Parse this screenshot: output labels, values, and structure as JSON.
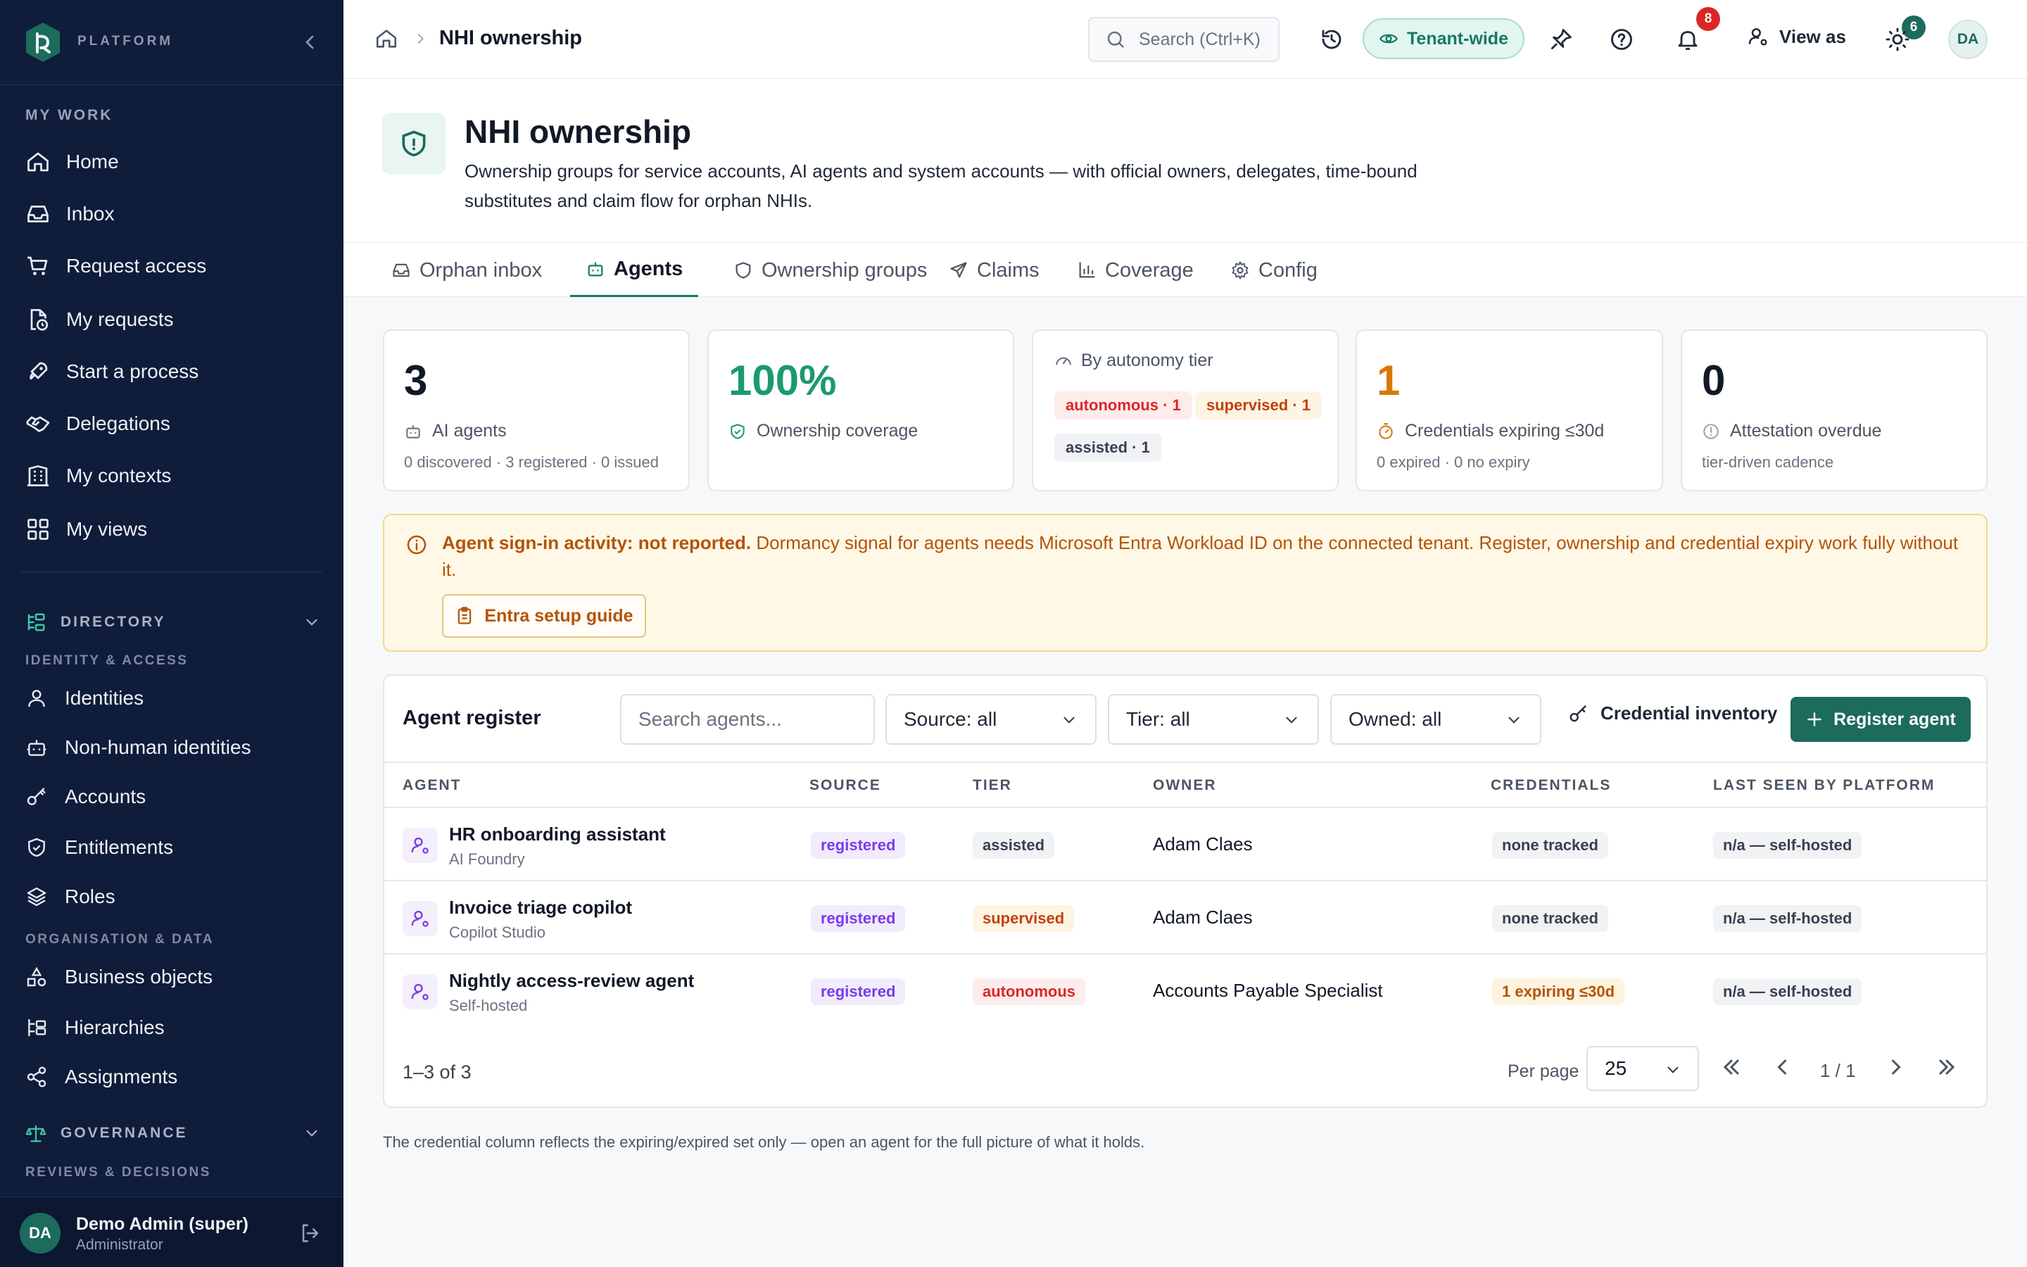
{
  "sidebar": {
    "brand": "PLATFORM",
    "my_work_title": "MY WORK",
    "my_work": [
      {
        "label": "Home"
      },
      {
        "label": "Inbox"
      },
      {
        "label": "Request access"
      },
      {
        "label": "My requests"
      },
      {
        "label": "Start a process"
      },
      {
        "label": "Delegations"
      },
      {
        "label": "My contexts"
      },
      {
        "label": "My views"
      }
    ],
    "directory_title": "DIRECTORY",
    "identity_access_title": "IDENTITY & ACCESS",
    "identity_items": [
      {
        "label": "Identities"
      },
      {
        "label": "Non-human identities"
      },
      {
        "label": "Accounts"
      },
      {
        "label": "Entitlements"
      },
      {
        "label": "Roles"
      }
    ],
    "org_data_title": "ORGANISATION & DATA",
    "org_items": [
      {
        "label": "Business objects"
      },
      {
        "label": "Hierarchies"
      },
      {
        "label": "Assignments"
      }
    ],
    "governance_title": "GOVERNANCE",
    "reviews_title": "REVIEWS & DECISIONS",
    "user": {
      "initials": "DA",
      "name": "Demo Admin (super)",
      "role": "Administrator"
    }
  },
  "topbar": {
    "breadcrumb_current": "NHI ownership",
    "search_placeholder": "Search (Ctrl+K)",
    "tenant_label": "Tenant-wide",
    "pin_badge": "6",
    "notif_badge": "8",
    "view_as_label": "View as",
    "avatar_initials": "DA"
  },
  "header": {
    "title": "NHI ownership",
    "description": "Ownership groups for service accounts, AI agents and system accounts — with official owners, delegates, time-bound substitutes and claim flow for orphan NHIs."
  },
  "tabs": [
    {
      "label": "Orphan inbox",
      "icon": "inbox-icon"
    },
    {
      "label": "Agents",
      "icon": "bot-icon",
      "active": true
    },
    {
      "label": "Ownership groups",
      "icon": "shield-icon"
    },
    {
      "label": "Claims",
      "icon": "send-icon"
    },
    {
      "label": "Coverage",
      "icon": "bar-chart-icon"
    },
    {
      "label": "Config",
      "icon": "gear-icon"
    }
  ],
  "stats": {
    "agents": {
      "value": "3",
      "label": "AI agents",
      "sub": "0 discovered · 3 registered · 0 issued"
    },
    "coverage": {
      "value": "100%",
      "label": "Ownership coverage"
    },
    "tier": {
      "label": "By autonomy tier",
      "chips": [
        "autonomous · 1",
        "supervised · 1",
        "assisted · 1"
      ]
    },
    "expiring": {
      "value": "1",
      "label": "Credentials expiring ≤30d",
      "sub": "0 expired · 0 no expiry"
    },
    "attestation": {
      "value": "0",
      "label": "Attestation overdue",
      "sub": "tier-driven cadence"
    }
  },
  "alert": {
    "bold": "Agent sign-in activity: not reported.",
    "text": " Dormancy signal for agents needs Microsoft Entra Workload ID on the connected tenant. Register, ownership and credential expiry work fully without it.",
    "button": "Entra setup guide"
  },
  "register": {
    "title": "Agent register",
    "search_placeholder": "Search agents...",
    "filters": {
      "source": "Source: all",
      "tier": "Tier: all",
      "owned": "Owned: all"
    },
    "credential_inventory": "Credential inventory",
    "register_button": "Register agent",
    "columns": [
      "AGENT",
      "SOURCE",
      "TIER",
      "OWNER",
      "CREDENTIALS",
      "LAST SEEN BY PLATFORM"
    ],
    "rows": [
      {
        "name": "HR onboarding assistant",
        "platform": "AI Foundry",
        "source": "registered",
        "tier": "assisted",
        "owner": "Adam Claes",
        "credentials": "none tracked",
        "last_seen": "n/a — self-hosted"
      },
      {
        "name": "Invoice triage copilot",
        "platform": "Copilot Studio",
        "source": "registered",
        "tier": "supervised",
        "owner": "Adam Claes",
        "credentials": "none tracked",
        "last_seen": "n/a — self-hosted"
      },
      {
        "name": "Nightly access-review agent",
        "platform": "Self-hosted",
        "source": "registered",
        "tier": "autonomous",
        "owner": "Accounts Payable Specialist",
        "credentials": "1 expiring ≤30d",
        "last_seen": "n/a — self-hosted"
      }
    ],
    "count": "1–3 of 3",
    "per_page_label": "Per page",
    "per_page": "25",
    "page": "1 / 1"
  },
  "footnote": "The credential column reflects the expiring/expired set only — open an agent for the full picture of what it holds.",
  "colors": {
    "sidebar": "#0f1c3a",
    "accent": "#1c6b5c",
    "warning": "#b45309",
    "danger": "#dc2626"
  }
}
